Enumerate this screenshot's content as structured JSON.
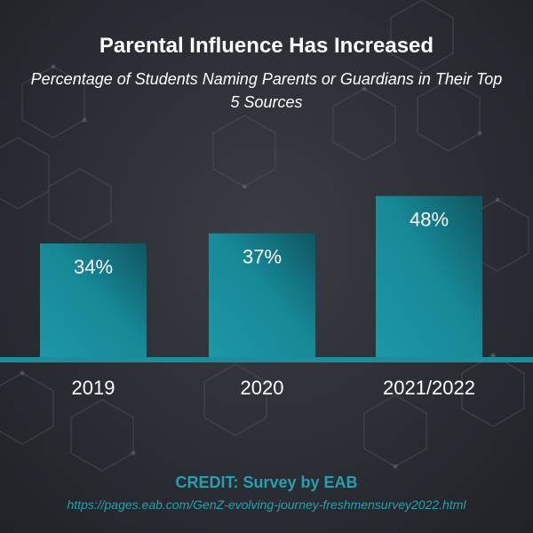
{
  "chart_data": {
    "type": "bar",
    "title": "Parental Influence Has Increased",
    "subtitle": "Percentage of Students Naming Parents or Guardians in Their Top 5 Sources",
    "categories": [
      "2019",
      "2020",
      "2021/2022"
    ],
    "values": [
      34,
      37,
      48
    ],
    "data_labels": [
      "34%",
      "37%",
      "48%"
    ],
    "ylim": [
      0,
      100
    ],
    "xlabel": "",
    "ylabel": "",
    "grid": false
  },
  "credit": "CREDIT: Survey by EAB",
  "url": "https://pages.eab.com/GenZ-evolving-journey-freshmensurvey2022.html",
  "colors": {
    "bar_light": "#1c98a6",
    "bar_dark": "#0f5560",
    "baseline": "#1b8e9b",
    "accent_text": "#26a0ae"
  }
}
